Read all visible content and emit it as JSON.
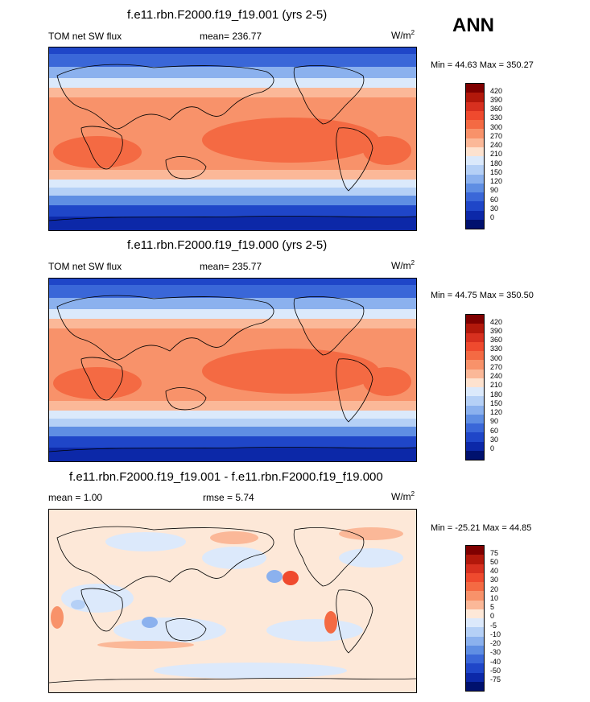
{
  "season": "ANN",
  "panels": [
    {
      "title": "f.e11.rbn.F2000.f19_f19.001 (yrs 2-5)",
      "left_label": "TOM net SW flux",
      "center_label": "mean= 236.77",
      "units_base": "W/m",
      "units_exp": "2",
      "minmax": "Min =  44.63 Max = 350.27",
      "colorbar": {
        "levels": [
          "420",
          "390",
          "360",
          "330",
          "300",
          "270",
          "240",
          "210",
          "180",
          "150",
          "120",
          "90",
          "60",
          "30",
          "0"
        ],
        "colors": [
          "#7f0000",
          "#b2180b",
          "#d7301f",
          "#ef4a2e",
          "#f46a43",
          "#f8926a",
          "#fbb898",
          "#fde2cf",
          "#dbe9fb",
          "#b5d0f6",
          "#8bb1ee",
          "#5f8ee3",
          "#3a67d8",
          "#1f46c8",
          "#0c28a8",
          "#00116e"
        ]
      }
    },
    {
      "title": "f.e11.rbn.F2000.f19_f19.000 (yrs 2-5)",
      "left_label": "TOM net SW flux",
      "center_label": "mean= 235.77",
      "units_base": "W/m",
      "units_exp": "2",
      "minmax": "Min =  44.75 Max = 350.50",
      "colorbar": {
        "levels": [
          "420",
          "390",
          "360",
          "330",
          "300",
          "270",
          "240",
          "210",
          "180",
          "150",
          "120",
          "90",
          "60",
          "30",
          "0"
        ],
        "colors": [
          "#7f0000",
          "#b2180b",
          "#d7301f",
          "#ef4a2e",
          "#f46a43",
          "#f8926a",
          "#fbb898",
          "#fde2cf",
          "#dbe9fb",
          "#b5d0f6",
          "#8bb1ee",
          "#5f8ee3",
          "#3a67d8",
          "#1f46c8",
          "#0c28a8",
          "#00116e"
        ]
      }
    },
    {
      "title": "f.e11.rbn.F2000.f19_f19.001 - f.e11.rbn.F2000.f19_f19.000",
      "left_label": "mean =   1.00",
      "center_label": "rmse =   5.74",
      "units_base": "W/m",
      "units_exp": "2",
      "minmax": "Min = -25.21 Max =  44.85",
      "colorbar": {
        "levels": [
          "75",
          "50",
          "40",
          "30",
          "20",
          "10",
          "5",
          "0",
          "-5",
          "-10",
          "-20",
          "-30",
          "-40",
          "-50",
          "-75"
        ],
        "colors": [
          "#7f0000",
          "#b2180b",
          "#d7301f",
          "#ef4a2e",
          "#f46a43",
          "#f8926a",
          "#fbb898",
          "#fde8d8",
          "#dce9fb",
          "#b5d0f6",
          "#8bb1ee",
          "#5f8ee3",
          "#3a67d8",
          "#1f46c8",
          "#0c28a8",
          "#00116e"
        ]
      }
    }
  ]
}
